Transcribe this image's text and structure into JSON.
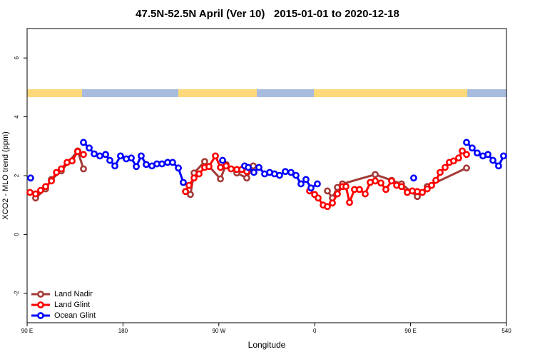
{
  "chart_data": {
    "type": "line",
    "title": "47.5N-52.5N April (Ver 10)   2015-01-01 to 2020-12-18",
    "x_label": "Longitude",
    "y_label": "XCO2 - MLO trend (ppm)",
    "xlim": [
      90,
      540
    ],
    "xticks": [
      {
        "value": 90,
        "label": "90 E"
      },
      180,
      {
        "value": 270,
        "label": "90 W"
      },
      {
        "value": 360,
        "label": "0"
      },
      {
        "value": 450,
        "label": "90 E"
      },
      540
    ],
    "ylim": [
      -3,
      7
    ],
    "yticks": [
      -2,
      0,
      2,
      4,
      6
    ],
    "grid": false,
    "legend": "bottomleft",
    "series": [
      {
        "name": "Land Nadir",
        "color": "#a33a36",
        "x": [
          98.0,
          107.4,
          112.8,
          122.1,
          137.5,
          142.9,
          null,
          243.3,
          246.7,
          256.7,
          271.5,
          276.8,
          286.9,
          296.2,
          302.3,
          null,
          371.9,
          376.6,
          381.3,
          386.0,
          416.8,
          432.2,
          441.5,
          456.3,
          465.6,
          502.5
        ],
        "values": [
          1.24,
          1.55,
          1.87,
          2.16,
          2.84,
          2.23,
          null,
          1.36,
          2.09,
          2.48,
          1.89,
          2.38,
          2.09,
          1.92,
          2.33,
          null,
          1.48,
          1.24,
          1.6,
          1.72,
          2.04,
          1.84,
          1.72,
          1.29,
          1.63,
          2.26
        ]
      },
      {
        "name": "Land Glint",
        "color": "#ff0000",
        "x": [
          92.7,
          98.0,
          102.7,
          107.4,
          112.8,
          117.5,
          122.1,
          127.5,
          132.2,
          137.5,
          142.9,
          null,
          238.7,
          242.0,
          246.7,
          251.4,
          256.7,
          260.7,
          266.8,
          271.5,
          276.8,
          281.5,
          286.9,
          291.5,
          296.2,
          null,
          355.2,
          359.9,
          363.2,
          367.9,
          371.9,
          376.6,
          381.3,
          386.0,
          389.3,
          392.7,
          397.3,
          402.0,
          407.4,
          412.1,
          416.8,
          422.1,
          426.8,
          432.2,
          436.9,
          441.5,
          446.9,
          451.6,
          456.3,
          461.0,
          465.6,
          469.7,
          473.7,
          477.7,
          482.4,
          486.4,
          490.4,
          495.1,
          498.5,
          502.5
        ],
        "values": [
          1.43,
          1.38,
          1.5,
          1.63,
          1.82,
          2.11,
          2.23,
          2.45,
          2.5,
          2.82,
          2.72,
          null,
          1.46,
          1.67,
          1.92,
          2.06,
          2.28,
          2.31,
          2.67,
          2.28,
          2.33,
          2.23,
          2.21,
          2.21,
          2.14,
          null,
          1.48,
          1.36,
          1.24,
          1.0,
          0.95,
          1.07,
          1.38,
          1.63,
          1.63,
          1.09,
          1.53,
          1.53,
          1.38,
          1.77,
          1.82,
          1.75,
          1.53,
          1.82,
          1.67,
          1.63,
          1.43,
          1.48,
          1.46,
          1.43,
          1.55,
          1.67,
          1.84,
          2.11,
          2.28,
          2.45,
          2.5,
          2.6,
          2.84,
          2.72
        ]
      },
      {
        "name": "Ocean Glint",
        "color": "#0000ff",
        "x": [
          93.3,
          null,
          142.9,
          148.3,
          153.0,
          158.3,
          163.7,
          167.7,
          172.4,
          177.7,
          183.1,
          187.8,
          192.5,
          197.1,
          201.8,
          207.2,
          211.9,
          216.6,
          221.9,
          226.6,
          232.0,
          236.6,
          null,
          273.5,
          null,
          294.2,
          297.6,
          302.9,
          307.6,
          313.0,
          317.7,
          322.3,
          327.0,
          332.4,
          337.7,
          342.4,
          347.1,
          351.8,
          356.5,
          362.5,
          null,
          452.9,
          null,
          502.5,
          507.8,
          512.5,
          517.9,
          522.6,
          527.3,
          532.6,
          537.3
        ],
        "values": [
          1.92,
          null,
          3.13,
          2.94,
          2.74,
          2.67,
          2.72,
          2.52,
          2.33,
          2.67,
          2.57,
          2.6,
          2.31,
          2.67,
          2.38,
          2.33,
          2.4,
          2.4,
          2.45,
          2.45,
          2.26,
          1.77,
          null,
          2.52,
          null,
          2.33,
          2.28,
          2.11,
          2.28,
          2.06,
          2.11,
          2.06,
          2.01,
          2.14,
          2.11,
          2.01,
          1.72,
          1.87,
          1.58,
          1.72,
          null,
          1.92,
          null,
          3.13,
          2.94,
          2.77,
          2.67,
          2.72,
          2.52,
          2.33,
          2.67
        ]
      }
    ]
  }
}
